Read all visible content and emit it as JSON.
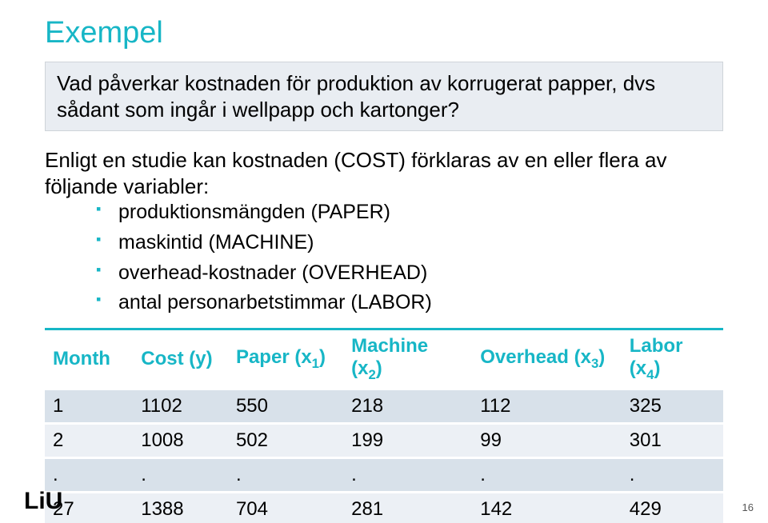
{
  "title_color": "#17b6c6",
  "header_line_color": "#17b6c6",
  "bullet_color": "#17b6c6",
  "logo_color": "#000000",
  "title": "Exempel",
  "question": "Vad påverkar kostnaden för produktion av korrugerat papper, dvs sådant som ingår i wellpapp och kartonger?",
  "intro": "Enligt en studie kan kostnaden (COST) förklaras av en eller flera av följande variabler:",
  "bullets": [
    "produktionsmängden (PAPER)",
    "maskintid (MACHINE)",
    "overhead-kostnader (OVERHEAD)",
    "antal personarbetstimmar (LABOR)"
  ],
  "table": {
    "columns": [
      {
        "label": "Month",
        "sub": ""
      },
      {
        "label": "Cost (y)",
        "sub": ""
      },
      {
        "label": "Paper (x",
        "sub": "1",
        "tail": ")"
      },
      {
        "label": "Machine (x",
        "sub": "2",
        "tail": ")"
      },
      {
        "label": "Overhead (x",
        "sub": "3",
        "tail": ")"
      },
      {
        "label": "Labor (x",
        "sub": "4",
        "tail": ")"
      }
    ],
    "rows": [
      [
        "1",
        "1102",
        "550",
        "218",
        "112",
        "325"
      ],
      [
        "2",
        "1008",
        "502",
        "199",
        "99",
        "301"
      ],
      [
        ".",
        ".",
        ".",
        ".",
        ".",
        "."
      ],
      [
        "27",
        "1388",
        "704",
        "281",
        "142",
        "429"
      ]
    ]
  },
  "logo_text": "LiU",
  "page_number": "16"
}
